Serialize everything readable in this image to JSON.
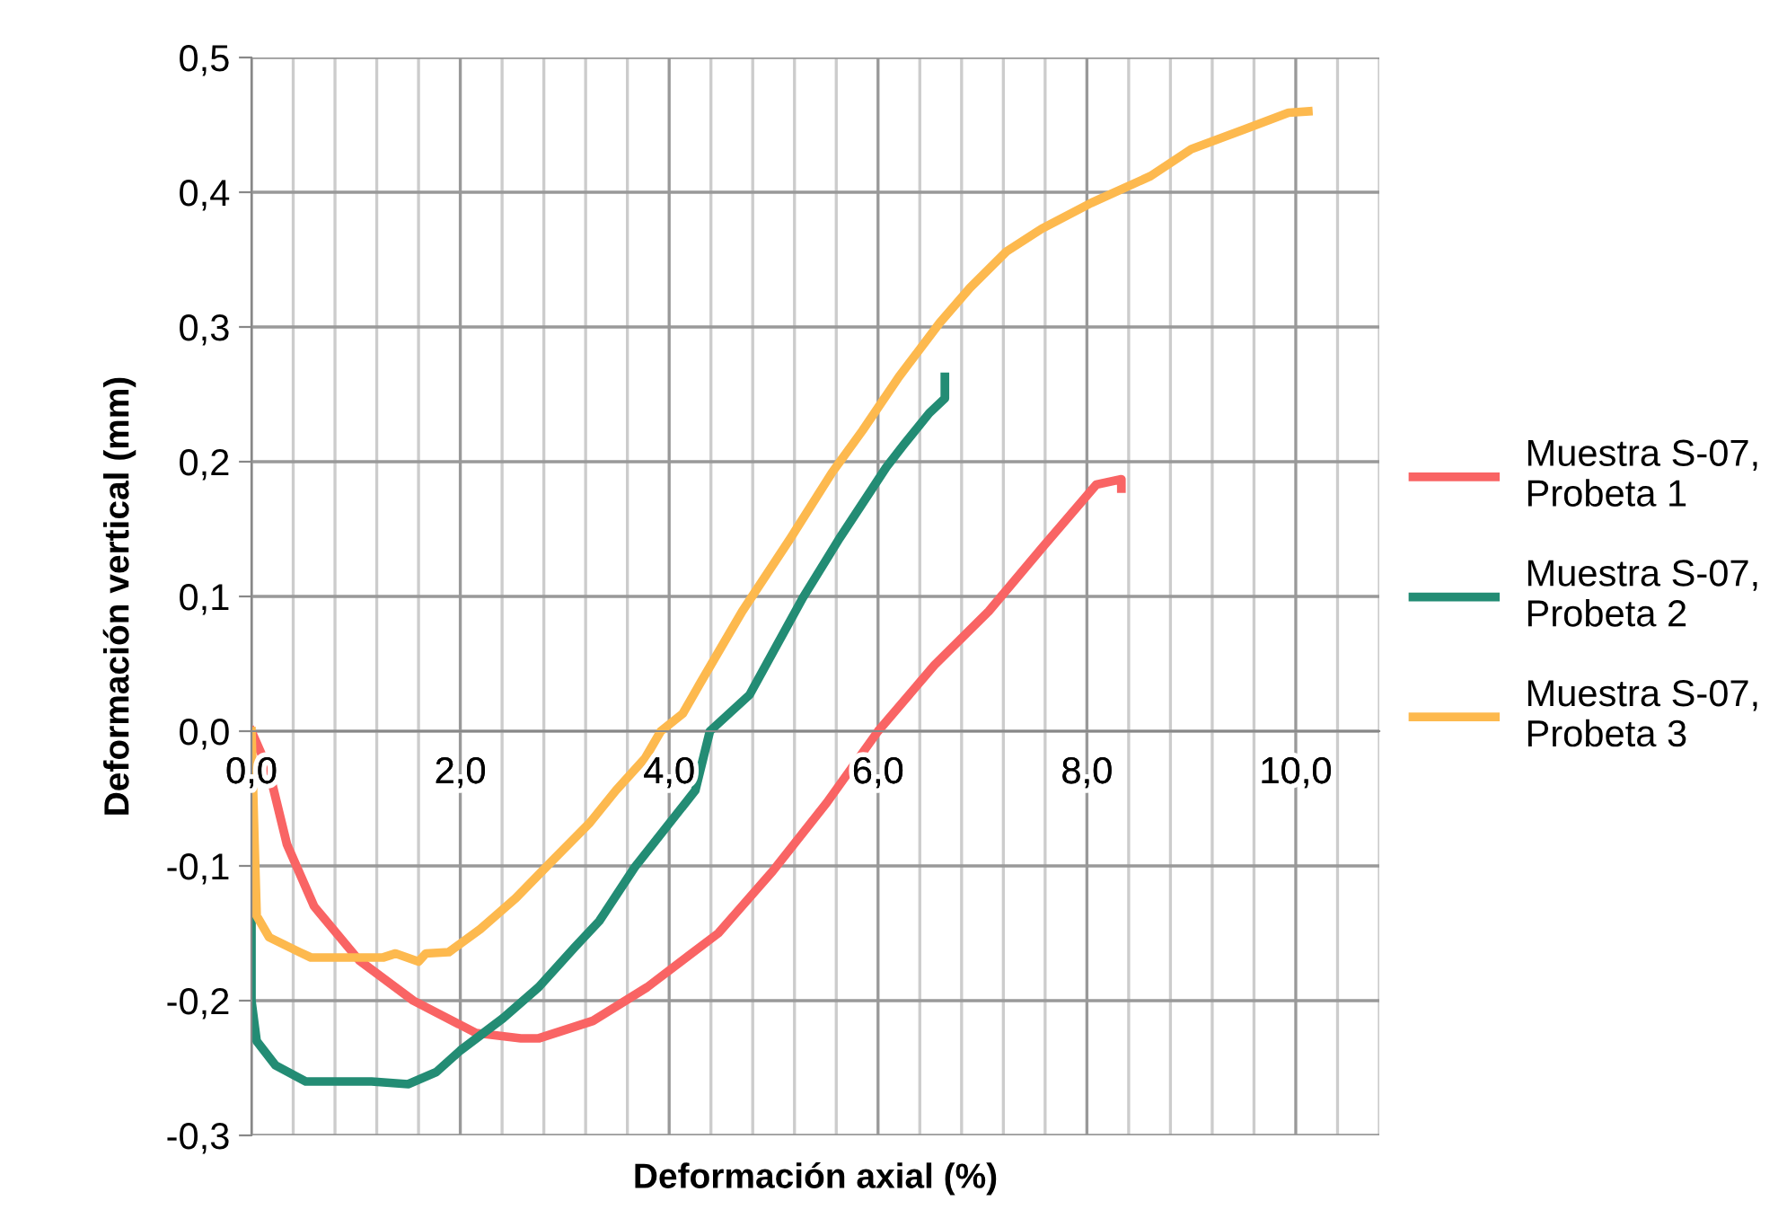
{
  "chart_data": {
    "type": "line",
    "xlabel": "Deformación axial (%)",
    "ylabel": "Deformación vertical (mm)",
    "xlim": [
      0,
      10.8
    ],
    "ylim": [
      -0.3,
      0.5
    ],
    "xticks": [
      {
        "value": 0,
        "label": "0,0"
      },
      {
        "value": 0.4,
        "label": null
      },
      {
        "value": 0.8,
        "label": null
      },
      {
        "value": 1.2,
        "label": null
      },
      {
        "value": 1.6,
        "label": null
      },
      {
        "value": 2,
        "label": "2,0"
      },
      {
        "value": 2.4,
        "label": null
      },
      {
        "value": 2.8,
        "label": null
      },
      {
        "value": 3.2,
        "label": null
      },
      {
        "value": 3.6,
        "label": null
      },
      {
        "value": 4,
        "label": "4,0"
      },
      {
        "value": 4.4,
        "label": null
      },
      {
        "value": 4.8,
        "label": null
      },
      {
        "value": 5.2,
        "label": null
      },
      {
        "value": 5.6,
        "label": null
      },
      {
        "value": 6,
        "label": "6,0"
      },
      {
        "value": 6.4,
        "label": null
      },
      {
        "value": 6.8,
        "label": null
      },
      {
        "value": 7.2,
        "label": null
      },
      {
        "value": 7.6,
        "label": null
      },
      {
        "value": 8,
        "label": "8,0"
      },
      {
        "value": 8.4,
        "label": null
      },
      {
        "value": 8.8,
        "label": null
      },
      {
        "value": 9.2,
        "label": null
      },
      {
        "value": 9.6,
        "label": null
      },
      {
        "value": 10,
        "label": "10,0"
      },
      {
        "value": 10.4,
        "label": null
      },
      {
        "value": 10.8,
        "label": null
      }
    ],
    "yticks": [
      {
        "value": -0.3,
        "label": "-0,3"
      },
      {
        "value": -0.2,
        "label": "-0,2"
      },
      {
        "value": -0.1,
        "label": "-0,1"
      },
      {
        "value": 0,
        "label": "0,0"
      },
      {
        "value": 0.1,
        "label": "0,1"
      },
      {
        "value": 0.2,
        "label": "0,2"
      },
      {
        "value": 0.3,
        "label": "0,3"
      },
      {
        "value": 0.4,
        "label": "0,4"
      },
      {
        "value": 0.5,
        "label": "0,5"
      }
    ],
    "grid": true,
    "legend": "right",
    "marker": "none",
    "line_style": "solid",
    "series": [
      {
        "name": "Muestra S-07, Probeta 1",
        "color": "#f96464",
        "x": [
          0,
          0.17,
          0.34,
          0.6,
          1.03,
          1.55,
          2.15,
          2.58,
          2.75,
          3.27,
          3.79,
          4.47,
          4.99,
          5.51,
          6.0,
          6.54,
          7.06,
          7.57,
          8.09,
          8.33,
          8.33
        ],
        "values": [
          0,
          -0.03,
          -0.084,
          -0.13,
          -0.17,
          -0.2,
          -0.224,
          -0.228,
          -0.228,
          -0.215,
          -0.19,
          -0.15,
          -0.104,
          -0.053,
          0,
          0.049,
          0.089,
          0.136,
          0.183,
          0.187,
          0.18
        ]
      },
      {
        "name": "Muestra S-07, Probeta 2",
        "color": "#238c74",
        "x": [
          0,
          0,
          0.05,
          0.23,
          0.52,
          1.15,
          1.5,
          1.77,
          2.0,
          2.41,
          2.75,
          3.1,
          3.33,
          3.67,
          4.25,
          4.39,
          4.77,
          5.28,
          5.63,
          6.08,
          6.25,
          6.49,
          6.64,
          6.64
        ],
        "values": [
          -0.1,
          -0.2,
          -0.23,
          -0.248,
          -0.26,
          -0.26,
          -0.262,
          -0.253,
          -0.237,
          -0.213,
          -0.19,
          -0.16,
          -0.141,
          -0.101,
          -0.044,
          0,
          0.027,
          0.099,
          0.143,
          0.196,
          0.213,
          0.236,
          0.247,
          0.263
        ]
      },
      {
        "name": "Muestra S-07, Probeta 3",
        "color": "#fdb94e",
        "x": [
          0,
          0.03,
          0.05,
          0.17,
          0.46,
          0.57,
          1.26,
          1.38,
          1.6,
          1.67,
          1.89,
          2.19,
          2.53,
          2.87,
          3.24,
          3.49,
          3.77,
          3.92,
          4.13,
          4.3,
          4.7,
          5.16,
          5.56,
          5.85,
          6.2,
          6.59,
          6.88,
          7.23,
          7.57,
          8.04,
          8.61,
          9.0,
          9.52,
          9.93,
          10.12
        ],
        "values": [
          0,
          -0.084,
          -0.137,
          -0.153,
          -0.164,
          -0.168,
          -0.168,
          -0.165,
          -0.171,
          -0.165,
          -0.164,
          -0.147,
          -0.124,
          -0.097,
          -0.068,
          -0.044,
          -0.02,
          0,
          0.013,
          0.036,
          0.089,
          0.143,
          0.192,
          0.223,
          0.263,
          0.303,
          0.329,
          0.356,
          0.373,
          0.392,
          0.412,
          0.432,
          0.447,
          0.459,
          0.46
        ]
      }
    ]
  }
}
